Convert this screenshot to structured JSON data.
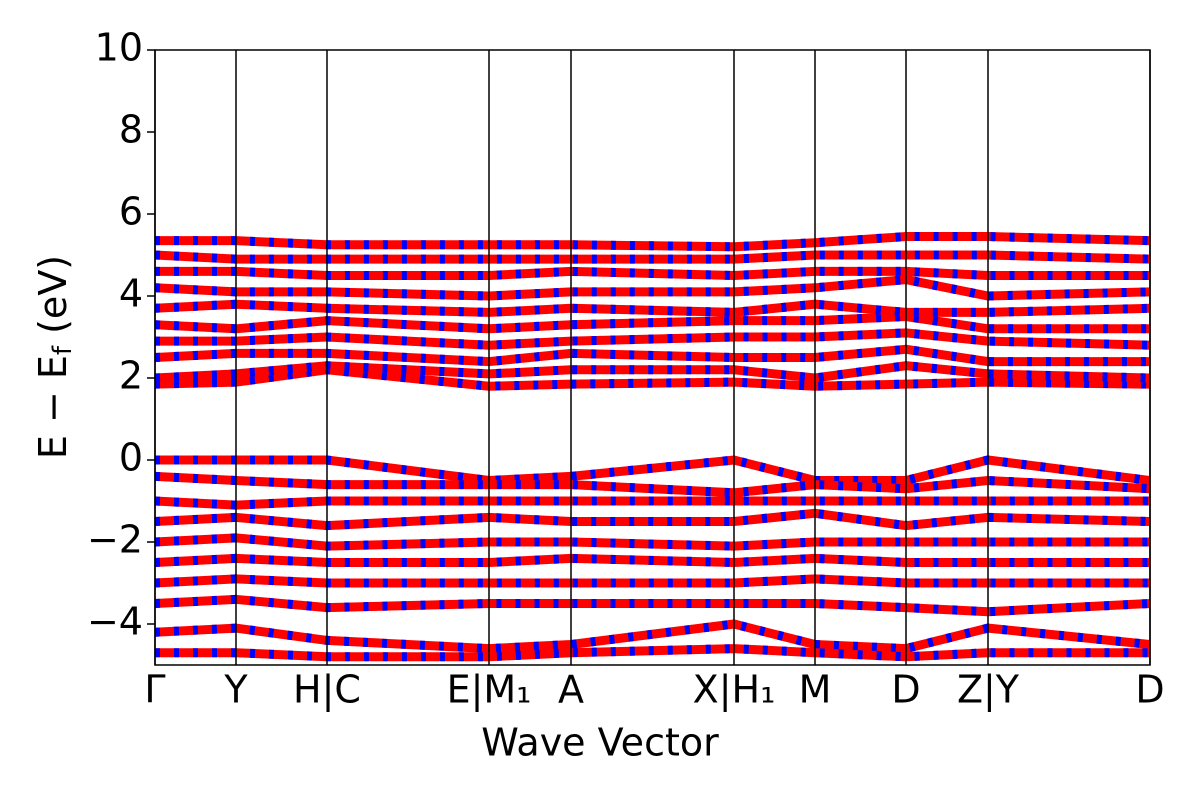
{
  "chart_data": {
    "type": "band",
    "ylabel": [
      "E − E",
      "f",
      " (eV)"
    ],
    "xlabel": "Wave Vector",
    "x": [
      0,
      0.81,
      1.72,
      3.34,
      4.16,
      5.79,
      6.6,
      7.51,
      8.33,
      9.95
    ],
    "xlim": [
      0,
      9.95
    ],
    "xticks": [
      {
        "value": 0,
        "label": "Γ"
      },
      {
        "value": 0.81,
        "label": "Y"
      },
      {
        "value": 1.72,
        "label": "H|C"
      },
      {
        "value": 3.34,
        "label": "E|M₁"
      },
      {
        "value": 4.16,
        "label": "A"
      },
      {
        "value": 5.79,
        "label": "X|H₁"
      },
      {
        "value": 6.6,
        "label": "M"
      },
      {
        "value": 7.51,
        "label": "D"
      },
      {
        "value": 8.33,
        "label": "Z|Y"
      },
      {
        "value": 9.95,
        "label": "D"
      }
    ],
    "ylim": [
      -5,
      10
    ],
    "yticks": [
      {
        "value": -4,
        "label": "−4"
      },
      {
        "value": -2,
        "label": "−2"
      },
      0,
      2,
      4,
      6,
      8,
      10
    ],
    "stripe_color": "#0000ff",
    "series": [
      {
        "color": "#ff0000",
        "values": [
          1.85,
          1.9,
          2.2,
          1.8,
          1.85,
          1.9,
          1.8,
          1.85,
          1.9,
          1.85
        ]
      },
      {
        "color": "#ff0000",
        "values": [
          2.0,
          2.1,
          2.3,
          2.1,
          2.2,
          2.2,
          2.0,
          2.3,
          2.1,
          2.0
        ]
      },
      {
        "color": "#ff0000",
        "values": [
          2.5,
          2.6,
          2.6,
          2.4,
          2.6,
          2.5,
          2.5,
          2.7,
          2.4,
          2.4
        ]
      },
      {
        "color": "#ff0000",
        "values": [
          2.9,
          2.9,
          3.0,
          2.8,
          2.9,
          3.0,
          3.0,
          3.1,
          2.9,
          2.8
        ]
      },
      {
        "color": "#ff0000",
        "values": [
          3.3,
          3.2,
          3.4,
          3.2,
          3.3,
          3.4,
          3.4,
          3.5,
          3.2,
          3.2
        ]
      },
      {
        "color": "#ff0000",
        "values": [
          3.7,
          3.8,
          3.7,
          3.6,
          3.7,
          3.6,
          3.8,
          3.6,
          3.6,
          3.7
        ]
      },
      {
        "color": "#ff0000",
        "values": [
          4.2,
          4.1,
          4.1,
          4.0,
          4.1,
          4.1,
          4.2,
          4.4,
          4.0,
          4.1
        ]
      },
      {
        "color": "#ff0000",
        "values": [
          4.6,
          4.6,
          4.5,
          4.5,
          4.6,
          4.5,
          4.6,
          4.6,
          4.5,
          4.5
        ]
      },
      {
        "color": "#ff0000",
        "values": [
          5.0,
          4.9,
          4.9,
          4.9,
          4.9,
          4.9,
          5.0,
          5.0,
          5.0,
          4.9
        ]
      },
      {
        "color": "#ff0000",
        "values": [
          5.35,
          5.35,
          5.25,
          5.25,
          5.25,
          5.2,
          5.3,
          5.45,
          5.45,
          5.35
        ]
      },
      {
        "color": "#ff0000",
        "values": [
          0,
          0,
          0,
          -0.5,
          -0.4,
          0,
          -0.5,
          -0.5,
          0,
          -0.5
        ]
      },
      {
        "color": "#ff0000",
        "values": [
          -0.4,
          -0.5,
          -0.6,
          -0.6,
          -0.6,
          -0.8,
          -0.6,
          -0.7,
          -0.5,
          -0.7
        ]
      },
      {
        "color": "#ff0000",
        "values": [
          -1.0,
          -1.1,
          -1.0,
          -1.0,
          -1.0,
          -1.0,
          -1.0,
          -1.0,
          -1.0,
          -1.0
        ]
      },
      {
        "color": "#ff0000",
        "values": [
          -1.5,
          -1.4,
          -1.6,
          -1.4,
          -1.5,
          -1.5,
          -1.3,
          -1.6,
          -1.4,
          -1.5
        ]
      },
      {
        "color": "#ff0000",
        "values": [
          -2.0,
          -1.9,
          -2.1,
          -2.0,
          -2.0,
          -2.1,
          -2.0,
          -2.0,
          -2.0,
          -2.0
        ]
      },
      {
        "color": "#ff0000",
        "values": [
          -2.5,
          -2.4,
          -2.5,
          -2.5,
          -2.4,
          -2.5,
          -2.4,
          -2.5,
          -2.5,
          -2.5
        ]
      },
      {
        "color": "#ff0000",
        "values": [
          -3.0,
          -2.9,
          -3.0,
          -3.0,
          -3.0,
          -3.0,
          -2.9,
          -3.0,
          -3.0,
          -3.0
        ]
      },
      {
        "color": "#ff0000",
        "values": [
          -3.5,
          -3.4,
          -3.6,
          -3.5,
          -3.5,
          -3.5,
          -3.5,
          -3.6,
          -3.7,
          -3.5
        ]
      },
      {
        "color": "#ff0000",
        "values": [
          -4.2,
          -4.1,
          -4.4,
          -4.6,
          -4.5,
          -4.0,
          -4.5,
          -4.6,
          -4.1,
          -4.5
        ]
      },
      {
        "color": "#ff0000",
        "values": [
          -4.7,
          -4.7,
          -4.8,
          -4.8,
          -4.7,
          -4.6,
          -4.7,
          -4.8,
          -4.7,
          -4.7
        ]
      }
    ]
  }
}
